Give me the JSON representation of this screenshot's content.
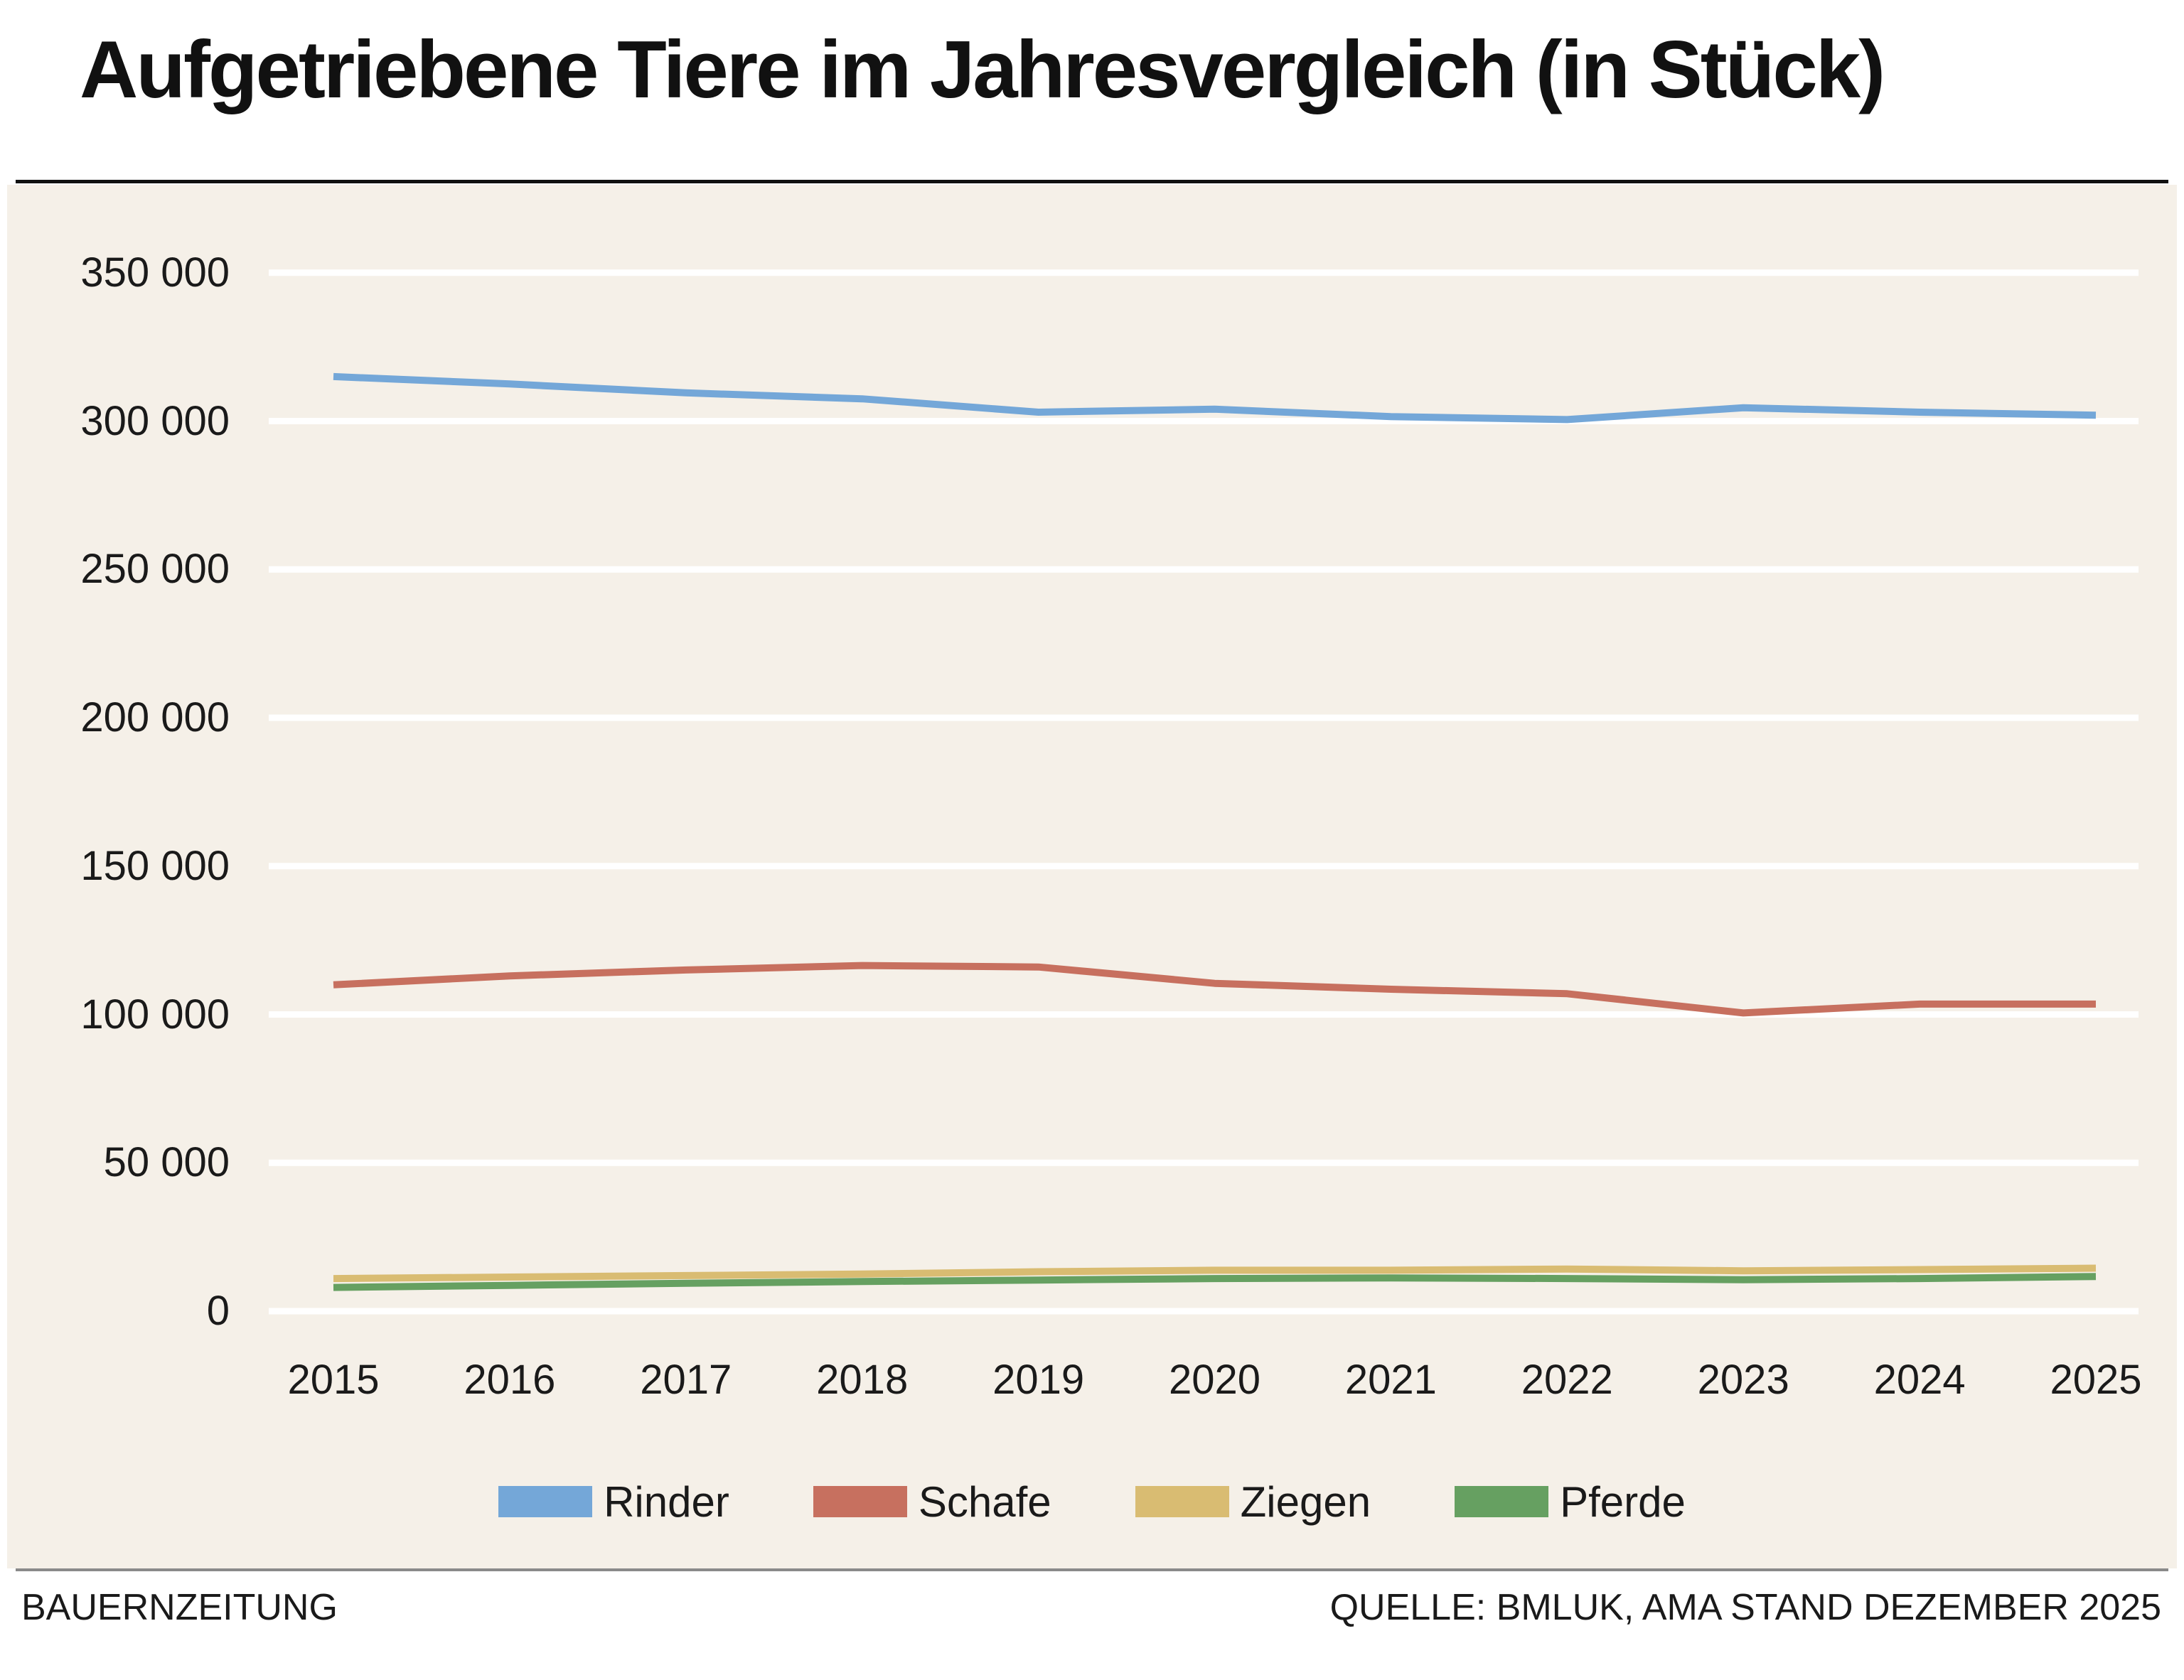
{
  "title": "Aufgetriebene Tiere im Jahresvergleich (in Stück)",
  "footer": {
    "left": "BAUERNZEITUNG",
    "right": "QUELLE: BMLUK, AMA STAND DEZEMBER 2025"
  },
  "colors": {
    "panel_background": "#F5F0E8",
    "gridline": "#FFFFFF",
    "text": "#1A1A1A",
    "title_rule": "#111111",
    "footer_rule": "#8A8A8A"
  },
  "chart_data": {
    "type": "line",
    "title": "Aufgetriebene Tiere im Jahresvergleich (in Stück)",
    "x": [
      2015,
      2016,
      2017,
      2018,
      2019,
      2020,
      2021,
      2022,
      2023,
      2024,
      2025
    ],
    "series": [
      {
        "name": "Rinder",
        "color": "#74A7D8",
        "values": [
          315000,
          312500,
          309500,
          307500,
          303000,
          304000,
          301500,
          300500,
          304500,
          303000,
          302000
        ]
      },
      {
        "name": "Schafe",
        "color": "#C7705F",
        "values": [
          110000,
          113000,
          115000,
          116500,
          116000,
          110500,
          108500,
          107000,
          100500,
          103500,
          103500
        ]
      },
      {
        "name": "Ziegen",
        "color": "#D9BC72",
        "values": [
          11000,
          11500,
          12000,
          12500,
          13300,
          13800,
          13800,
          14200,
          13600,
          14000,
          14500
        ]
      },
      {
        "name": "Pferde",
        "color": "#66A061",
        "values": [
          8000,
          8700,
          9400,
          10000,
          10500,
          11000,
          11200,
          11000,
          10600,
          11000,
          11700
        ]
      }
    ],
    "ylim": [
      0,
      350000
    ],
    "ytick_step": 50000,
    "ytick_labels": [
      "350 000",
      "300 000",
      "250 000",
      "200 000",
      "150 000",
      "100 000",
      "50 000",
      "0"
    ],
    "grid": true,
    "legend_position": "bottom"
  }
}
